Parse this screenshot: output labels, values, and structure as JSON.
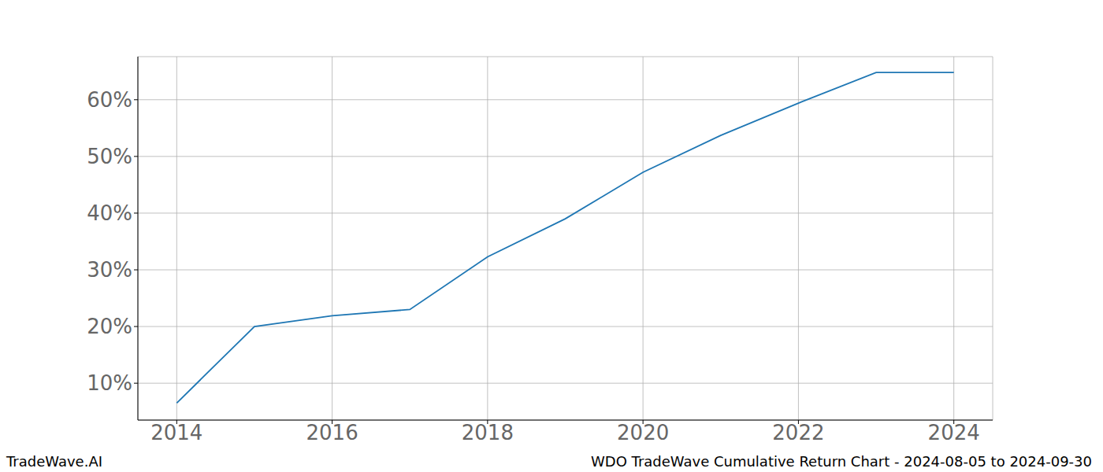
{
  "chart_data": {
    "type": "line",
    "title": "WDO TradeWave Cumulative Return Chart - 2024-08-05 to 2024-09-30",
    "source": "TradeWave.AI",
    "x": [
      2014,
      2015,
      2016,
      2017,
      2018,
      2019,
      2020,
      2021,
      2022,
      2023,
      2024
    ],
    "values": [
      6.5,
      20.0,
      21.9,
      23.0,
      32.3,
      39.0,
      47.2,
      53.7,
      59.4,
      64.8,
      64.8
    ],
    "color": "#1f77b4",
    "xlim": [
      2013.5,
      2024.5
    ],
    "xticks": [
      2014,
      2016,
      2018,
      2020,
      2022,
      2024
    ],
    "ylim": [
      3.5,
      67.6
    ],
    "yticks": [
      {
        "value": 10,
        "label": "10%"
      },
      {
        "value": 20,
        "label": "20%"
      },
      {
        "value": 30,
        "label": "30%"
      },
      {
        "value": 40,
        "label": "40%"
      },
      {
        "value": 50,
        "label": "50%"
      },
      {
        "value": 60,
        "label": "60%"
      }
    ],
    "grid": true
  }
}
